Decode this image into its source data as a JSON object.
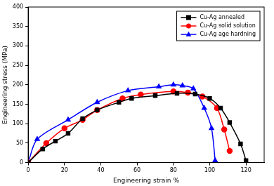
{
  "chart_data": {
    "type": "line",
    "x_label": "Engineering strain %",
    "y_label": "Engineering stress (MPa)",
    "xlim": [
      0,
      130
    ],
    "xticks": [
      0,
      20,
      40,
      60,
      80,
      100,
      120
    ],
    "ylim": [
      0,
      400
    ],
    "yticks": [
      0,
      50,
      100,
      150,
      200,
      250,
      300,
      350,
      400
    ],
    "grid": false,
    "legend": "upper right",
    "series": [
      {
        "name": "Cu-Ag annealed",
        "color": "#000000",
        "marker": "square",
        "line_style": "solid",
        "x": [
          0,
          8,
          15,
          22,
          30,
          38,
          50,
          57,
          70,
          82,
          92,
          100,
          106,
          111,
          117,
          120
        ],
        "values": [
          0,
          35,
          55,
          75,
          113,
          135,
          155,
          165,
          172,
          178,
          176,
          165,
          140,
          103,
          48,
          5
        ]
      },
      {
        "name": "Cu-Ag solid solution",
        "color": "#ff0000",
        "marker": "circle",
        "line_style": "solid",
        "x": [
          0,
          10,
          20,
          30,
          38,
          52,
          62,
          80,
          88,
          96,
          104,
          108,
          111
        ],
        "values": [
          0,
          50,
          88,
          110,
          135,
          165,
          175,
          183,
          180,
          170,
          140,
          85,
          30
        ]
      },
      {
        "name": "Cu-Ag age hardning",
        "color": "#0000ff",
        "marker": "triangle",
        "line_style": "solid",
        "x": [
          0,
          5,
          22,
          38,
          55,
          72,
          80,
          85,
          91,
          97,
          101,
          103
        ],
        "values": [
          0,
          60,
          110,
          155,
          185,
          195,
          200,
          198,
          190,
          140,
          88,
          5
        ]
      }
    ]
  }
}
